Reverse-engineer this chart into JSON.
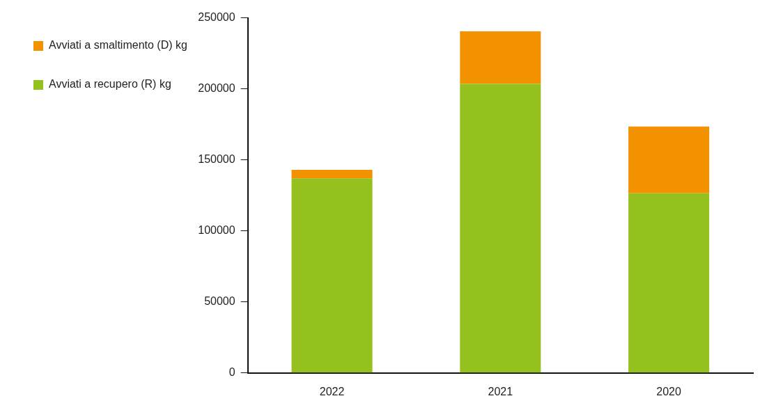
{
  "chart_data": {
    "type": "bar",
    "stacked": true,
    "categories": [
      "2022",
      "2021",
      "2020"
    ],
    "series": [
      {
        "name": "Avviati a recupero (R) kg",
        "color": "#95c11f",
        "values": [
          137000,
          203500,
          126500
        ]
      },
      {
        "name": "Avviati a smaltimento (D) kg",
        "color": "#f39200",
        "values": [
          6000,
          37000,
          47000
        ]
      }
    ],
    "ylim": [
      0,
      250000
    ],
    "yticks": [
      0,
      50000,
      100000,
      150000,
      200000,
      250000
    ],
    "grid": false,
    "legend": "left"
  }
}
